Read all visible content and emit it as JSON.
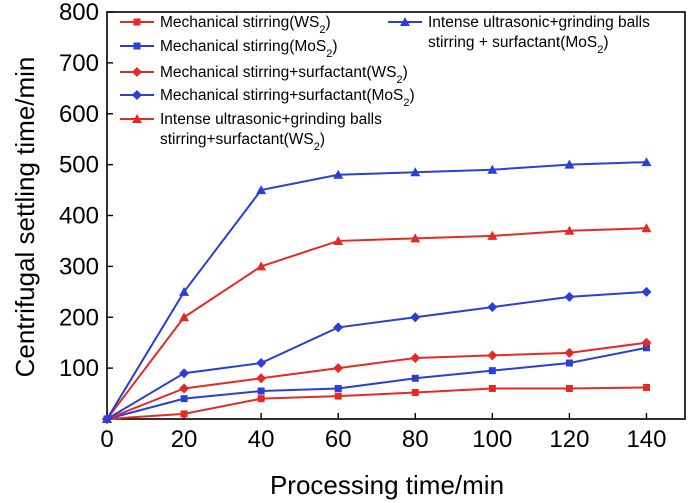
{
  "chart_data": {
    "type": "line",
    "title": "",
    "xlabel": "Processing time/min",
    "ylabel": "Centrifugal settling time/min",
    "xlim": [
      0,
      150
    ],
    "ylim": [
      0,
      800
    ],
    "xticks": [
      0,
      20,
      40,
      60,
      80,
      100,
      120,
      140
    ],
    "yticks": [
      100,
      200,
      300,
      400,
      500,
      600,
      700,
      800
    ],
    "legend_position": "top",
    "series": [
      {
        "name": "Mechanical stirring(WS2)",
        "label_parts": [
          {
            "text": "Mechanical stirring(WS"
          },
          {
            "text": "2",
            "sub": true
          },
          {
            "text": ")"
          }
        ],
        "color": "#e52a24",
        "marker": "square",
        "x": [
          0,
          20,
          40,
          60,
          80,
          100,
          120,
          140
        ],
        "y": [
          0,
          10,
          40,
          45,
          52,
          60,
          60,
          62
        ]
      },
      {
        "name": "Mechanical stirring(MoS2)",
        "label_parts": [
          {
            "text": "Mechanical stirring(MoS"
          },
          {
            "text": "2",
            "sub": true
          },
          {
            "text": ")"
          }
        ],
        "color": "#2a3fd6",
        "marker": "square",
        "x": [
          0,
          20,
          40,
          60,
          80,
          100,
          120,
          140
        ],
        "y": [
          0,
          40,
          55,
          60,
          80,
          95,
          110,
          140
        ]
      },
      {
        "name": "Mechanical stirring+surfactant(WS2)",
        "label_parts": [
          {
            "text": "Mechanical stirring+surfactant(WS"
          },
          {
            "text": "2",
            "sub": true
          },
          {
            "text": ")"
          }
        ],
        "color": "#e52a24",
        "marker": "diamond",
        "x": [
          0,
          20,
          40,
          60,
          80,
          100,
          120,
          140
        ],
        "y": [
          0,
          60,
          80,
          100,
          120,
          125,
          130,
          150
        ]
      },
      {
        "name": "Mechanical stirring+surfactant(MoS2)",
        "label_parts": [
          {
            "text": "Mechanical stirring+surfactant(MoS"
          },
          {
            "text": "2",
            "sub": true
          },
          {
            "text": ")"
          }
        ],
        "color": "#2a3fd6",
        "marker": "diamond",
        "x": [
          0,
          20,
          40,
          60,
          80,
          100,
          120,
          140
        ],
        "y": [
          0,
          90,
          110,
          180,
          200,
          220,
          240,
          250
        ]
      },
      {
        "name": "Intense ultrasonic+grinding balls stirring+surfactant(WS2)",
        "label_lines": [
          [
            {
              "text": "Intense ultrasonic+grinding balls"
            }
          ],
          [
            {
              "text": "stirring+surfactant(WS"
            },
            {
              "text": "2",
              "sub": true
            },
            {
              "text": ")"
            }
          ]
        ],
        "color": "#e52a24",
        "marker": "triangle",
        "x": [
          0,
          20,
          40,
          60,
          80,
          100,
          120,
          140
        ],
        "y": [
          0,
          200,
          300,
          350,
          355,
          360,
          370,
          375
        ]
      },
      {
        "name": "Intense ultrasonic+grinding balls stirring + surfactant(MoS2)",
        "label_lines": [
          [
            {
              "text": "Intense ultrasonic+grinding balls"
            }
          ],
          [
            {
              "text": "stirring + surfactant(MoS"
            },
            {
              "text": "2",
              "sub": true
            },
            {
              "text": ")"
            }
          ]
        ],
        "color": "#2a3fd6",
        "marker": "triangle",
        "x": [
          0,
          20,
          40,
          60,
          80,
          100,
          120,
          140
        ],
        "y": [
          0,
          250,
          450,
          480,
          485,
          490,
          500,
          505
        ]
      }
    ]
  }
}
